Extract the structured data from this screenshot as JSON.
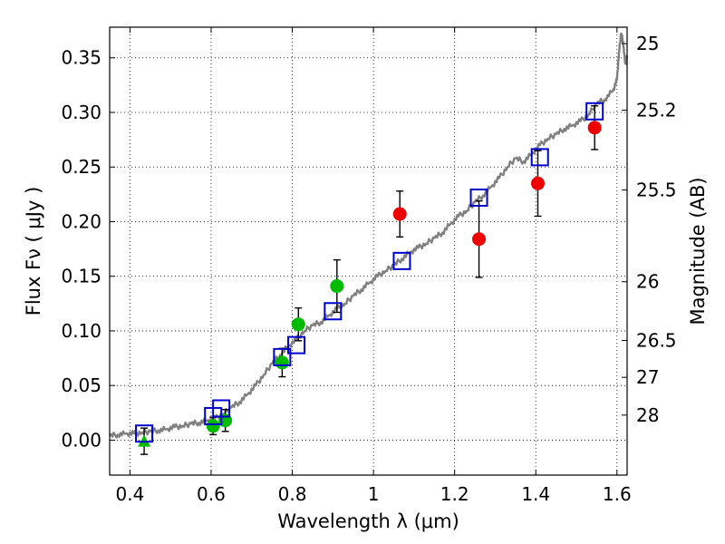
{
  "chart_data": {
    "type": "scatter",
    "title": "",
    "xlabel": "Wavelength  λ (μm)",
    "ylabel": "Flux  Fν  ( μJy )",
    "y2label": "Magnitude (AB)",
    "xlim": [
      0.35,
      1.625
    ],
    "ylim": [
      -0.032,
      0.378
    ],
    "grid": true,
    "x_ticks": [
      0.4,
      0.6,
      0.8,
      1.0,
      1.2,
      1.4,
      1.6
    ],
    "x_tick_labels": [
      "0.4",
      "0.6",
      "0.8",
      "1",
      "1.2",
      "1.4",
      "1.6"
    ],
    "y_ticks": [
      0.0,
      0.05,
      0.1,
      0.15,
      0.2,
      0.25,
      0.3,
      0.35
    ],
    "y_tick_labels": [
      "0.00",
      "0.05",
      "0.10",
      "0.15",
      "0.20",
      "0.25",
      "0.30",
      "0.35"
    ],
    "y2_ticks": [
      {
        "label": "25",
        "flux": 0.363
      },
      {
        "label": "25.2",
        "flux": 0.302
      },
      {
        "label": "25.5",
        "flux": 0.229
      },
      {
        "label": "26",
        "flux": 0.145
      },
      {
        "label": "26.5",
        "flux": 0.0912
      },
      {
        "label": "27",
        "flux": 0.0575
      },
      {
        "label": "28",
        "flux": 0.0229
      }
    ],
    "colors": {
      "model": "#808080",
      "model_photometry": "#0000cc",
      "green_points": "#00bb00",
      "red_points": "#ee0000",
      "upper_limit": "#00bb00",
      "error_bars": "#000000"
    },
    "series": [
      {
        "type": "line",
        "x": [
          0.35,
          0.37,
          0.39,
          0.41,
          0.43,
          0.45,
          0.47,
          0.49,
          0.51,
          0.53,
          0.55,
          0.57,
          0.59,
          0.61,
          0.63,
          0.65,
          0.67,
          0.69,
          0.71,
          0.73,
          0.75,
          0.77,
          0.79,
          0.81,
          0.83,
          0.85,
          0.87,
          0.89,
          0.91,
          0.93,
          0.95,
          0.97,
          0.99,
          1.01,
          1.03,
          1.05,
          1.07,
          1.09,
          1.11,
          1.13,
          1.15,
          1.17,
          1.19,
          1.21,
          1.23,
          1.25,
          1.27,
          1.29,
          1.31,
          1.33,
          1.35,
          1.37,
          1.39,
          1.41,
          1.43,
          1.45,
          1.47,
          1.49,
          1.51,
          1.53,
          1.55,
          1.57,
          1.59,
          1.6,
          1.605,
          1.61,
          1.615,
          1.62,
          1.625
        ],
        "values": [
          0.004,
          0.005,
          0.006,
          0.006,
          0.007,
          0.008,
          0.009,
          0.01,
          0.012,
          0.013,
          0.015,
          0.016,
          0.018,
          0.02,
          0.024,
          0.03,
          0.035,
          0.042,
          0.05,
          0.06,
          0.07,
          0.078,
          0.086,
          0.092,
          0.1,
          0.105,
          0.108,
          0.114,
          0.12,
          0.125,
          0.132,
          0.138,
          0.144,
          0.15,
          0.155,
          0.16,
          0.166,
          0.172,
          0.176,
          0.18,
          0.185,
          0.19,
          0.198,
          0.205,
          0.21,
          0.218,
          0.224,
          0.232,
          0.24,
          0.25,
          0.258,
          0.255,
          0.262,
          0.27,
          0.276,
          0.28,
          0.285,
          0.288,
          0.292,
          0.298,
          0.308,
          0.312,
          0.32,
          0.33,
          0.355,
          0.372,
          0.365,
          0.345,
          0.35
        ]
      },
      {
        "type": "scatter",
        "marker": "open-square",
        "x": [
          0.435,
          0.605,
          0.625,
          0.775,
          0.81,
          0.9,
          1.07,
          1.26,
          1.41,
          1.545
        ],
        "values": [
          0.006,
          0.022,
          0.029,
          0.076,
          0.087,
          0.118,
          0.164,
          0.222,
          0.259,
          0.301
        ]
      },
      {
        "type": "scatter",
        "marker": "circle",
        "x": [
          0.605,
          0.635,
          0.775,
          0.815,
          0.91
        ],
        "values": [
          0.013,
          0.018,
          0.071,
          0.106,
          0.141
        ],
        "errors": [
          0.008,
          0.01,
          0.013,
          0.015,
          0.024
        ]
      },
      {
        "type": "scatter",
        "marker": "circle",
        "x": [
          1.065,
          1.26,
          1.405,
          1.545
        ],
        "values": [
          0.207,
          0.184,
          0.235,
          0.286
        ],
        "errors": [
          0.021,
          0.035,
          0.03,
          0.02
        ]
      },
      {
        "type": "scatter",
        "marker": "triangle",
        "x": [
          0.435
        ],
        "values": [
          -0.001
        ],
        "errors": [
          0.012
        ]
      }
    ]
  }
}
